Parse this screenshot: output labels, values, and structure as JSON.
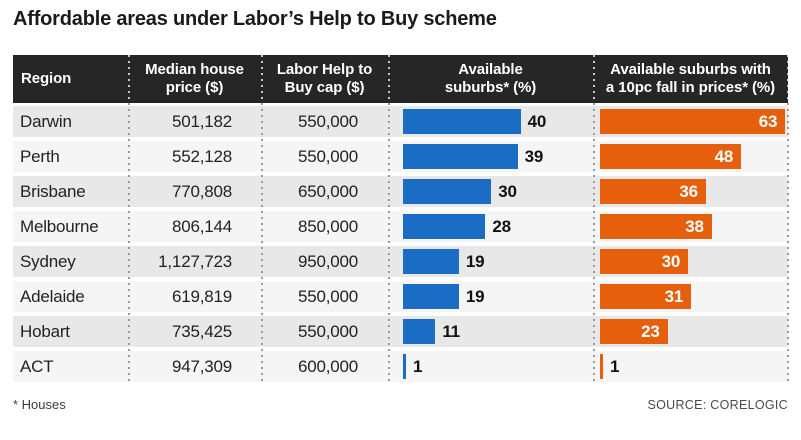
{
  "title": "Affordable areas under Labor’s Help to Buy scheme",
  "footnote": "* Houses",
  "source": "SOURCE: CORELOGIC",
  "colors": {
    "bar_blue": "#1b6cc4",
    "bar_orange": "#e65f0d",
    "header_bg": "#262626",
    "row_odd": "#e8e8e8",
    "row_even": "#f5f5f5"
  },
  "table": {
    "columns": [
      {
        "label": "Region"
      },
      {
        "label": "Median house\nprice ($)"
      },
      {
        "label": "Labor Help to\nBuy cap ($)"
      },
      {
        "label": "Available\nsuburbs* (%)"
      },
      {
        "label": "Available suburbs with\na 10pc fall in prices* (%)"
      }
    ],
    "rows": [
      {
        "region": "Darwin",
        "median_price": "501,182",
        "cap": "550,000",
        "available_pct": 40,
        "fall_pct": 63
      },
      {
        "region": "Perth",
        "median_price": "552,128",
        "cap": "550,000",
        "available_pct": 39,
        "fall_pct": 48
      },
      {
        "region": "Brisbane",
        "median_price": "770,808",
        "cap": "650,000",
        "available_pct": 30,
        "fall_pct": 36
      },
      {
        "region": "Melbourne",
        "median_price": "806,144",
        "cap": "850,000",
        "available_pct": 28,
        "fall_pct": 38
      },
      {
        "region": "Sydney",
        "median_price": "1,127,723",
        "cap": "950,000",
        "available_pct": 19,
        "fall_pct": 30
      },
      {
        "region": "Adelaide",
        "median_price": "619,819",
        "cap": "550,000",
        "available_pct": 19,
        "fall_pct": 31
      },
      {
        "region": "Hobart",
        "median_price": "735,425",
        "cap": "550,000",
        "available_pct": 11,
        "fall_pct": 23
      },
      {
        "region": "ACT",
        "median_price": "947,309",
        "cap": "600,000",
        "available_pct": 1,
        "fall_pct": 1
      }
    ]
  },
  "chart_data": {
    "type": "bar",
    "orientation": "horizontal",
    "title": "Affordable areas under Labor’s Help to Buy scheme",
    "categories": [
      "Darwin",
      "Perth",
      "Brisbane",
      "Melbourne",
      "Sydney",
      "Adelaide",
      "Hobart",
      "ACT"
    ],
    "series": [
      {
        "name": "Available suburbs* (%)",
        "color": "#1b6cc4",
        "values": [
          40,
          39,
          30,
          28,
          19,
          19,
          11,
          1
        ]
      },
      {
        "name": "Available suburbs with a 10pc fall in prices* (%)",
        "color": "#e65f0d",
        "values": [
          63,
          48,
          36,
          38,
          30,
          31,
          23,
          1
        ]
      }
    ],
    "xlim": [
      0,
      66
    ],
    "grid": false,
    "legend_position": "column-headers",
    "value_labels": true
  }
}
